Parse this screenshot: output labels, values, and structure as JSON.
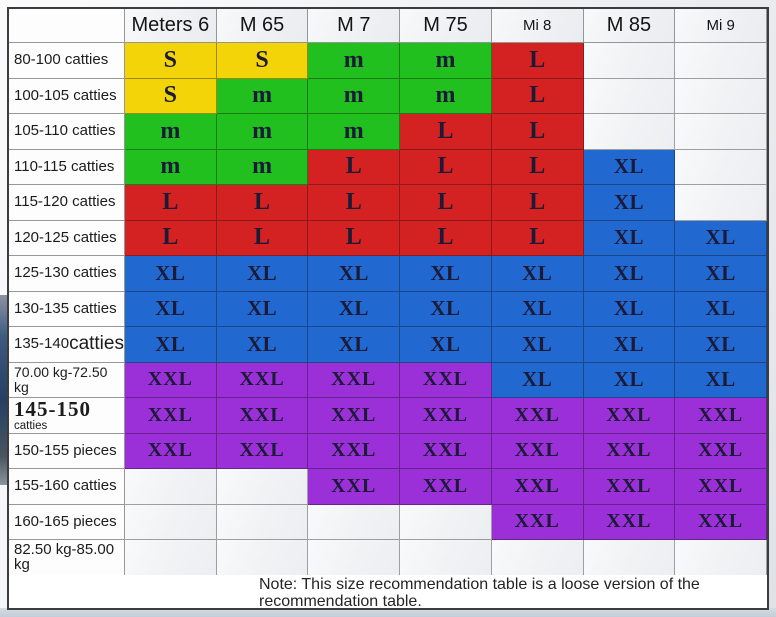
{
  "colors": {
    "yellow": "#F2D408",
    "green": "#21C01E",
    "red": "#D32221",
    "blue": "#2169D1",
    "purple": "#9C30D8",
    "letter": "#1B1B38"
  },
  "note": {
    "text": "Note: This size recommendation table is a loose version of the recommendation table."
  },
  "chart_data": {
    "type": "table",
    "title": "Size recommendation table",
    "columns": [
      {
        "label": "Meters 6",
        "size": "large"
      },
      {
        "label": "M 65",
        "size": "large"
      },
      {
        "label": "M 7",
        "size": "large"
      },
      {
        "label": "M 75",
        "size": "large"
      },
      {
        "label": "Mi 8",
        "size": "small"
      },
      {
        "label": "M 85",
        "size": "large"
      },
      {
        "label": "Mi 9",
        "size": "small"
      }
    ],
    "rows": [
      {
        "label": "80-100 catties",
        "cells": [
          {
            "t": "S",
            "c": "yellow"
          },
          {
            "t": "S",
            "c": "yellow"
          },
          {
            "t": "m",
            "c": "green"
          },
          {
            "t": "m",
            "c": "green"
          },
          {
            "t": "L",
            "c": "red"
          },
          null,
          null
        ]
      },
      {
        "label": "100-105 catties",
        "cells": [
          {
            "t": "S",
            "c": "yellow"
          },
          {
            "t": "m",
            "c": "green"
          },
          {
            "t": "m",
            "c": "green"
          },
          {
            "t": "m",
            "c": "green"
          },
          {
            "t": "L",
            "c": "red"
          },
          null,
          null
        ]
      },
      {
        "label": "105-110 catties",
        "cells": [
          {
            "t": "m",
            "c": "green"
          },
          {
            "t": "m",
            "c": "green"
          },
          {
            "t": "m",
            "c": "green"
          },
          {
            "t": "L",
            "c": "red"
          },
          {
            "t": "L",
            "c": "red"
          },
          null,
          null
        ]
      },
      {
        "label": "110-115 catties",
        "cells": [
          {
            "t": "m",
            "c": "green"
          },
          {
            "t": "m",
            "c": "green"
          },
          {
            "t": "L",
            "c": "red"
          },
          {
            "t": "L",
            "c": "red"
          },
          {
            "t": "L",
            "c": "red"
          },
          {
            "t": "XL",
            "c": "blue"
          },
          null
        ]
      },
      {
        "label": "115-120 catties",
        "cells": [
          {
            "t": "L",
            "c": "red"
          },
          {
            "t": "L",
            "c": "red"
          },
          {
            "t": "L",
            "c": "red"
          },
          {
            "t": "L",
            "c": "red"
          },
          {
            "t": "L",
            "c": "red"
          },
          {
            "t": "XL",
            "c": "blue"
          },
          null
        ]
      },
      {
        "label": "120-125 catties",
        "cells": [
          {
            "t": "L",
            "c": "red"
          },
          {
            "t": "L",
            "c": "red"
          },
          {
            "t": "L",
            "c": "red"
          },
          {
            "t": "L",
            "c": "red"
          },
          {
            "t": "L",
            "c": "red"
          },
          {
            "t": "XL",
            "c": "blue"
          },
          {
            "t": "XL",
            "c": "blue"
          }
        ]
      },
      {
        "label": "125-130 catties",
        "cells": [
          {
            "t": "XL",
            "c": "blue"
          },
          {
            "t": "XL",
            "c": "blue"
          },
          {
            "t": "XL",
            "c": "blue"
          },
          {
            "t": "XL",
            "c": "blue"
          },
          {
            "t": "XL",
            "c": "blue"
          },
          {
            "t": "XL",
            "c": "blue"
          },
          {
            "t": "XL",
            "c": "blue"
          }
        ]
      },
      {
        "label": "130-135 catties",
        "cells": [
          {
            "t": "XL",
            "c": "blue"
          },
          {
            "t": "XL",
            "c": "blue"
          },
          {
            "t": "XL",
            "c": "blue"
          },
          {
            "t": "XL",
            "c": "blue"
          },
          {
            "t": "XL",
            "c": "blue"
          },
          {
            "t": "XL",
            "c": "blue"
          },
          {
            "t": "XL",
            "c": "blue"
          }
        ]
      },
      {
        "label": "135-140 catties",
        "label_parts": [
          {
            "t": "135-140 ",
            "s": "normal"
          },
          {
            "t": "catties",
            "s": "large"
          }
        ],
        "cells": [
          {
            "t": "XL",
            "c": "blue"
          },
          {
            "t": "XL",
            "c": "blue"
          },
          {
            "t": "XL",
            "c": "blue"
          },
          {
            "t": "XL",
            "c": "blue"
          },
          {
            "t": "XL",
            "c": "blue"
          },
          {
            "t": "XL",
            "c": "blue"
          },
          {
            "t": "XL",
            "c": "blue"
          }
        ]
      },
      {
        "label": "70.00 kg-72.50 kg",
        "label_style": "small-label",
        "cells": [
          {
            "t": "XXL",
            "c": "purple"
          },
          {
            "t": "XXL",
            "c": "purple"
          },
          {
            "t": "XXL",
            "c": "purple"
          },
          {
            "t": "XXL",
            "c": "purple"
          },
          {
            "t": "XL",
            "c": "blue"
          },
          {
            "t": "XL",
            "c": "blue"
          },
          {
            "t": "XL",
            "c": "blue"
          }
        ]
      },
      {
        "label": "145-150catties",
        "label_parts": [
          {
            "t": "145-150",
            "s": "serif-bold"
          },
          {
            "t": "catties",
            "s": "small"
          }
        ],
        "cells": [
          {
            "t": "XXL",
            "c": "purple"
          },
          {
            "t": "XXL",
            "c": "purple"
          },
          {
            "t": "XXL",
            "c": "purple"
          },
          {
            "t": "XXL",
            "c": "purple"
          },
          {
            "t": "XXL",
            "c": "purple"
          },
          {
            "t": "XXL",
            "c": "purple"
          },
          {
            "t": "XXL",
            "c": "purple"
          }
        ]
      },
      {
        "label": "150-155 pieces",
        "cells": [
          {
            "t": "XXL",
            "c": "purple"
          },
          {
            "t": "XXL",
            "c": "purple"
          },
          {
            "t": "XXL",
            "c": "purple"
          },
          {
            "t": "XXL",
            "c": "purple"
          },
          {
            "t": "XXL",
            "c": "purple"
          },
          {
            "t": "XXL",
            "c": "purple"
          },
          {
            "t": "XXL",
            "c": "purple"
          }
        ]
      },
      {
        "label": "155-160 catties",
        "cells": [
          null,
          null,
          {
            "t": "XXL",
            "c": "purple"
          },
          {
            "t": "XXL",
            "c": "purple"
          },
          {
            "t": "XXL",
            "c": "purple"
          },
          {
            "t": "XXL",
            "c": "purple"
          },
          {
            "t": "XXL",
            "c": "purple"
          }
        ]
      },
      {
        "label": "160-165 pieces",
        "cells": [
          null,
          null,
          null,
          null,
          {
            "t": "XXL",
            "c": "purple"
          },
          {
            "t": "XXL",
            "c": "purple"
          },
          {
            "t": "XXL",
            "c": "purple"
          }
        ]
      },
      {
        "label": "82.50 kg-85.00 kg",
        "cells": [
          null,
          null,
          null,
          null,
          null,
          null,
          null
        ]
      }
    ]
  }
}
